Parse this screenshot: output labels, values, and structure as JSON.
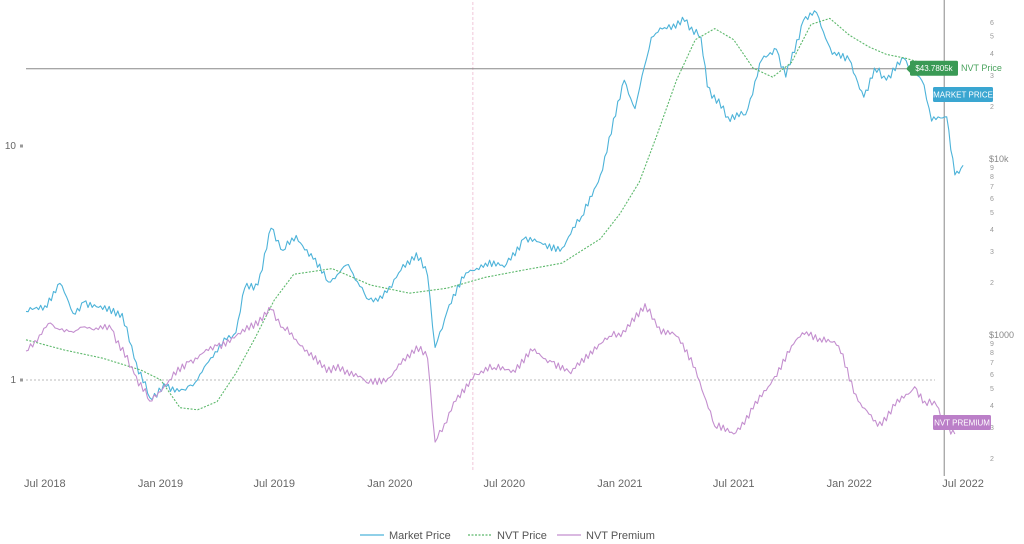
{
  "chart_data": {
    "type": "line",
    "x_ticks": [
      "Jul 2018",
      "Jan 2019",
      "Jul 2019",
      "Jan 2020",
      "Jul 2020",
      "Jan 2021",
      "Jul 2021",
      "Jan 2022",
      "Jul 2022"
    ],
    "x_range": [
      "2018-06-01",
      "2022-07-20"
    ],
    "left_ticks": [
      "10",
      "1"
    ],
    "right_price_ticks": [
      {
        "label": "6",
        "value": 60000
      },
      {
        "label": "5",
        "value": 50000
      },
      {
        "label": "4",
        "value": 40000
      },
      {
        "label": "3",
        "value": 30000
      },
      {
        "label": "2",
        "value": 20000
      },
      {
        "label": "$10k",
        "value": 10000
      },
      {
        "label": "9",
        "value": 9000
      },
      {
        "label": "8",
        "value": 8000
      },
      {
        "label": "7",
        "value": 7000
      },
      {
        "label": "6",
        "value": 6000
      },
      {
        "label": "5",
        "value": 5000
      },
      {
        "label": "4",
        "value": 4000
      },
      {
        "label": "3",
        "value": 3000
      },
      {
        "label": "2",
        "value": 2000
      },
      {
        "label": "$1000",
        "value": 1000
      },
      {
        "label": "9",
        "value": 900
      },
      {
        "label": "8",
        "value": 800
      },
      {
        "label": "7",
        "value": 700
      },
      {
        "label": "6",
        "value": 600
      },
      {
        "label": "5",
        "value": 500
      },
      {
        "label": "4",
        "value": 400
      },
      {
        "label": "3",
        "value": 300
      },
      {
        "label": "2",
        "value": 200
      }
    ],
    "y_scale": "log",
    "y_range": [
      180,
      70000
    ],
    "premium_scale": "log",
    "premium_reference": 1,
    "crosshair": {
      "date": "2022-06-01",
      "value": 43780.5
    },
    "tags": {
      "crosshair_value": "$43.7805k",
      "nvt_price": "NVT Price",
      "market_price": "MARKET PRICE",
      "nvt_premium": "NVT PREMIUM"
    },
    "series": [
      {
        "name": "Market Price",
        "color": "#4db3d9",
        "points": [
          [
            "2018-06-01",
            6500
          ],
          [
            "2018-07-01",
            6800
          ],
          [
            "2018-07-25",
            8100
          ],
          [
            "2018-08-15",
            6400
          ],
          [
            "2018-09-01",
            7000
          ],
          [
            "2018-10-01",
            6600
          ],
          [
            "2018-11-01",
            6400
          ],
          [
            "2018-11-20",
            4500
          ],
          [
            "2018-12-15",
            3300
          ],
          [
            "2019-01-10",
            3600
          ],
          [
            "2019-02-10",
            3500
          ],
          [
            "2019-03-01",
            3800
          ],
          [
            "2019-04-05",
            5000
          ],
          [
            "2019-05-01",
            5500
          ],
          [
            "2019-05-15",
            7800
          ],
          [
            "2019-06-05",
            8000
          ],
          [
            "2019-06-26",
            12500
          ],
          [
            "2019-07-15",
            10500
          ],
          [
            "2019-08-05",
            11800
          ],
          [
            "2019-09-01",
            9800
          ],
          [
            "2019-09-25",
            8200
          ],
          [
            "2019-10-27",
            9400
          ],
          [
            "2019-11-25",
            7200
          ],
          [
            "2019-12-20",
            7200
          ],
          [
            "2020-01-15",
            8800
          ],
          [
            "2020-02-12",
            10300
          ],
          [
            "2020-03-01",
            8600
          ],
          [
            "2020-03-13",
            4900
          ],
          [
            "2020-04-01",
            6500
          ],
          [
            "2020-05-01",
            8800
          ],
          [
            "2020-06-01",
            9500
          ],
          [
            "2020-07-01",
            9200
          ],
          [
            "2020-08-01",
            11500
          ],
          [
            "2020-09-01",
            11000
          ],
          [
            "2020-10-01",
            10700
          ],
          [
            "2020-11-01",
            13700
          ],
          [
            "2020-12-01",
            19000
          ],
          [
            "2021-01-08",
            40000
          ],
          [
            "2021-01-25",
            32000
          ],
          [
            "2021-02-20",
            56000
          ],
          [
            "2021-03-13",
            60500
          ],
          [
            "2021-04-14",
            63500
          ],
          [
            "2021-05-10",
            56000
          ],
          [
            "2021-05-20",
            38000
          ],
          [
            "2021-06-22",
            30000
          ],
          [
            "2021-07-20",
            30500
          ],
          [
            "2021-08-15",
            47000
          ],
          [
            "2021-09-07",
            51000
          ],
          [
            "2021-09-22",
            41000
          ],
          [
            "2021-10-20",
            64000
          ],
          [
            "2021-11-10",
            68000
          ],
          [
            "2021-12-05",
            49000
          ],
          [
            "2022-01-01",
            47000
          ],
          [
            "2022-01-24",
            35000
          ],
          [
            "2022-02-10",
            44000
          ],
          [
            "2022-03-01",
            40000
          ],
          [
            "2022-03-29",
            47500
          ],
          [
            "2022-04-30",
            38500
          ],
          [
            "2022-05-12",
            29000
          ],
          [
            "2022-06-05",
            30000
          ],
          [
            "2022-06-18",
            19000
          ],
          [
            "2022-07-01",
            20500
          ]
        ]
      },
      {
        "name": "NVT Price",
        "color": "#5cb86b",
        "points": [
          [
            "2018-06-01",
            5200
          ],
          [
            "2018-08-01",
            4800
          ],
          [
            "2018-10-01",
            4500
          ],
          [
            "2018-12-01",
            4100
          ],
          [
            "2019-01-01",
            3800
          ],
          [
            "2019-02-01",
            3050
          ],
          [
            "2019-03-01",
            3000
          ],
          [
            "2019-04-01",
            3200
          ],
          [
            "2019-05-01",
            4000
          ],
          [
            "2019-06-01",
            5300
          ],
          [
            "2019-07-01",
            7100
          ],
          [
            "2019-08-01",
            8700
          ],
          [
            "2019-10-01",
            9100
          ],
          [
            "2019-12-01",
            8000
          ],
          [
            "2020-02-01",
            7500
          ],
          [
            "2020-04-01",
            7800
          ],
          [
            "2020-06-01",
            8500
          ],
          [
            "2020-08-01",
            9000
          ],
          [
            "2020-10-01",
            9500
          ],
          [
            "2020-12-01",
            11500
          ],
          [
            "2021-01-01",
            14000
          ],
          [
            "2021-02-01",
            18000
          ],
          [
            "2021-03-01",
            26000
          ],
          [
            "2021-04-01",
            40000
          ],
          [
            "2021-05-01",
            55000
          ],
          [
            "2021-06-01",
            60000
          ],
          [
            "2021-07-01",
            55000
          ],
          [
            "2021-08-01",
            44000
          ],
          [
            "2021-09-01",
            41000
          ],
          [
            "2021-10-01",
            46000
          ],
          [
            "2021-11-01",
            62000
          ],
          [
            "2021-12-01",
            65000
          ],
          [
            "2022-01-01",
            57000
          ],
          [
            "2022-02-01",
            52000
          ],
          [
            "2022-03-01",
            49000
          ],
          [
            "2022-04-01",
            47500
          ],
          [
            "2022-05-01",
            45500
          ],
          [
            "2022-06-01",
            43780
          ]
        ]
      },
      {
        "name": "NVT Premium",
        "color": "#c48fcf",
        "points": [
          [
            "2018-06-01",
            1.25
          ],
          [
            "2018-07-10",
            1.55
          ],
          [
            "2018-08-01",
            1.45
          ],
          [
            "2018-09-10",
            1.5
          ],
          [
            "2018-10-15",
            1.48
          ],
          [
            "2018-11-20",
            1.05
          ],
          [
            "2018-12-15",
            0.85
          ],
          [
            "2019-01-15",
            1.0
          ],
          [
            "2019-02-15",
            1.15
          ],
          [
            "2019-04-01",
            1.3
          ],
          [
            "2019-05-15",
            1.45
          ],
          [
            "2019-06-26",
            1.72
          ],
          [
            "2019-07-15",
            1.5
          ],
          [
            "2019-08-15",
            1.3
          ],
          [
            "2019-09-15",
            1.1
          ],
          [
            "2019-10-25",
            1.08
          ],
          [
            "2019-11-25",
            0.98
          ],
          [
            "2020-01-01",
            1.02
          ],
          [
            "2020-02-12",
            1.3
          ],
          [
            "2020-03-01",
            1.18
          ],
          [
            "2020-03-13",
            0.62
          ],
          [
            "2020-04-15",
            0.85
          ],
          [
            "2020-05-15",
            1.05
          ],
          [
            "2020-06-15",
            1.1
          ],
          [
            "2020-07-15",
            1.08
          ],
          [
            "2020-08-15",
            1.25
          ],
          [
            "2020-09-15",
            1.15
          ],
          [
            "2020-10-15",
            1.05
          ],
          [
            "2020-11-15",
            1.25
          ],
          [
            "2020-12-15",
            1.4
          ],
          [
            "2021-01-10",
            1.45
          ],
          [
            "2021-02-10",
            1.8
          ],
          [
            "2021-03-01",
            1.5
          ],
          [
            "2021-04-01",
            1.4
          ],
          [
            "2021-05-01",
            1.1
          ],
          [
            "2021-06-01",
            0.7
          ],
          [
            "2021-07-01",
            0.66
          ],
          [
            "2021-08-01",
            0.8
          ],
          [
            "2021-09-01",
            1.0
          ],
          [
            "2021-10-01",
            1.3
          ],
          [
            "2021-10-25",
            1.45
          ],
          [
            "2021-11-15",
            1.38
          ],
          [
            "2021-12-15",
            1.3
          ],
          [
            "2022-01-15",
            0.85
          ],
          [
            "2022-02-15",
            0.7
          ],
          [
            "2022-03-15",
            0.82
          ],
          [
            "2022-04-15",
            0.95
          ],
          [
            "2022-05-01",
            0.85
          ],
          [
            "2022-05-20",
            0.82
          ],
          [
            "2022-06-05",
            0.7
          ],
          [
            "2022-06-18",
            0.66
          ]
        ]
      }
    ]
  }
}
